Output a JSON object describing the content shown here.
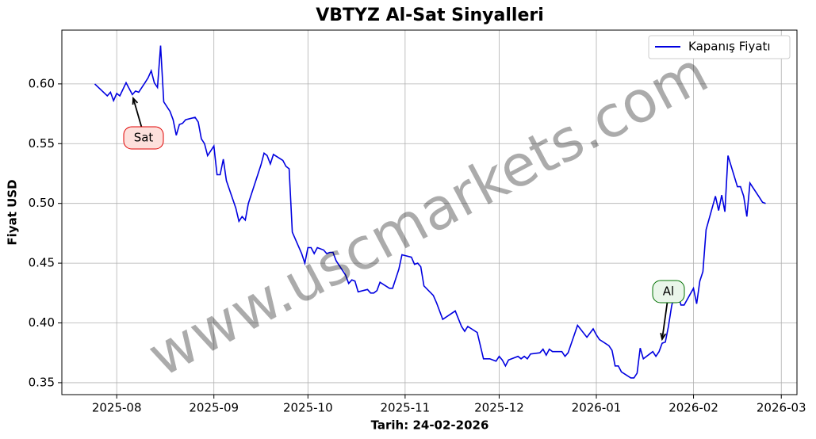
{
  "chart_data": {
    "type": "line",
    "title": "VBTYZ Al-Sat Sinyalleri",
    "xlabel": "Tarih: 24-02-2026",
    "ylabel": "Fiyat USD",
    "watermark": "www.uscmarkets.com",
    "legend_loc": "upper right",
    "grid": true,
    "xlim": [
      -17.5,
      217
    ],
    "ylim": [
      0.34,
      0.645
    ],
    "xticks": [
      {
        "value": 0,
        "label": "2025-08"
      },
      {
        "value": 31,
        "label": "2025-09"
      },
      {
        "value": 61,
        "label": "2025-10"
      },
      {
        "value": 92,
        "label": "2025-11"
      },
      {
        "value": 122,
        "label": "2025-12"
      },
      {
        "value": 153,
        "label": "2026-01"
      },
      {
        "value": 184,
        "label": "2026-02"
      },
      {
        "value": 212,
        "label": "2026-03"
      }
    ],
    "yticks": [
      0.35,
      {
        "value": 0.4,
        "label": "0.40"
      },
      0.45,
      {
        "value": 0.5,
        "label": "0.50"
      },
      0.55,
      {
        "value": 0.6,
        "label": "0.60"
      }
    ],
    "annotations": [
      {
        "text": "Sat"
      },
      {
        "text": "Al"
      }
    ],
    "x": [
      -7,
      -5,
      -3,
      -2,
      -1,
      0,
      1,
      3,
      5,
      6,
      7,
      9,
      10,
      11,
      12,
      13,
      14,
      15,
      17,
      18,
      19,
      20,
      21,
      22,
      25,
      26,
      27,
      28,
      29,
      31,
      32,
      33,
      34,
      35,
      38,
      39,
      40,
      41,
      42,
      46,
      47,
      48,
      49,
      50,
      53,
      54,
      55,
      56,
      59,
      60,
      61,
      62,
      63,
      64,
      66,
      67,
      68,
      69,
      70,
      73,
      74,
      75,
      76,
      77,
      80,
      81,
      82,
      83,
      84,
      87,
      88,
      90,
      91,
      94,
      95,
      96,
      97,
      98,
      101,
      102,
      104,
      108,
      110,
      111,
      112,
      115,
      117,
      119,
      121,
      122,
      123,
      124,
      125,
      128,
      129,
      130,
      131,
      132,
      135,
      136,
      137,
      138,
      139,
      142,
      143,
      144,
      147,
      150,
      152,
      153,
      154,
      157,
      158,
      159,
      160,
      161,
      164,
      165,
      166,
      167,
      168,
      171,
      172,
      173,
      174,
      175,
      176,
      177,
      178,
      179,
      180,
      181,
      184,
      185,
      186,
      187,
      188,
      191,
      192,
      193,
      194,
      195,
      198,
      199,
      200,
      201,
      202,
      205,
      206,
      207
    ],
    "series": [
      {
        "name": "Kapanış Fiyatı",
        "color": "#0000e0",
        "values": [
          0.6,
          0.595,
          0.59,
          0.593,
          0.586,
          0.592,
          0.59,
          0.601,
          0.591,
          0.594,
          0.593,
          0.601,
          0.605,
          0.611,
          0.601,
          0.597,
          0.632,
          0.585,
          0.577,
          0.57,
          0.557,
          0.566,
          0.567,
          0.57,
          0.572,
          0.568,
          0.554,
          0.55,
          0.54,
          0.548,
          0.524,
          0.524,
          0.537,
          0.519,
          0.496,
          0.485,
          0.489,
          0.486,
          0.5,
          0.532,
          0.542,
          0.54,
          0.533,
          0.541,
          0.536,
          0.531,
          0.529,
          0.476,
          0.458,
          0.45,
          0.463,
          0.463,
          0.458,
          0.463,
          0.461,
          0.458,
          0.459,
          0.459,
          0.452,
          0.44,
          0.433,
          0.436,
          0.435,
          0.426,
          0.428,
          0.425,
          0.425,
          0.427,
          0.434,
          0.429,
          0.429,
          0.445,
          0.457,
          0.455,
          0.449,
          0.45,
          0.447,
          0.431,
          0.423,
          0.417,
          0.403,
          0.41,
          0.397,
          0.393,
          0.397,
          0.392,
          0.37,
          0.37,
          0.368,
          0.372,
          0.369,
          0.364,
          0.369,
          0.372,
          0.37,
          0.372,
          0.37,
          0.374,
          0.375,
          0.378,
          0.373,
          0.378,
          0.376,
          0.376,
          0.372,
          0.375,
          0.398,
          0.388,
          0.395,
          0.39,
          0.386,
          0.381,
          0.377,
          0.364,
          0.364,
          0.359,
          0.354,
          0.354,
          0.358,
          0.379,
          0.37,
          0.376,
          0.372,
          0.376,
          0.383,
          0.384,
          0.397,
          0.414,
          0.425,
          0.424,
          0.415,
          0.415,
          0.429,
          0.416,
          0.435,
          0.443,
          0.478,
          0.506,
          0.494,
          0.507,
          0.493,
          0.54,
          0.514,
          0.514,
          0.506,
          0.489,
          0.517,
          0.505,
          0.501,
          0.5
        ]
      }
    ]
  }
}
